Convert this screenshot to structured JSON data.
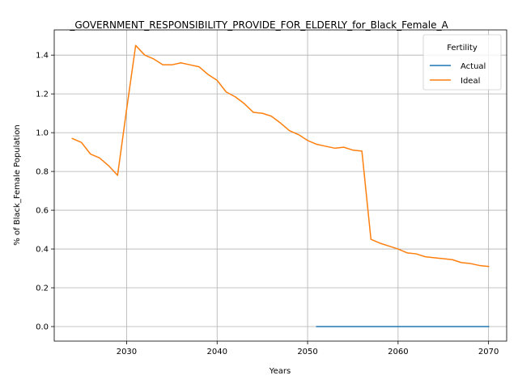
{
  "chart_data": {
    "type": "line",
    "title": "_GOVERNMENT_RESPONSIBILITY_PROVIDE_FOR_ELDERLY_for_Black_Female_A",
    "xlabel": "Years",
    "ylabel": "% of Black_Female Population",
    "xlim": [
      2022,
      2072
    ],
    "ylim": [
      -0.075,
      1.53
    ],
    "xticks": [
      2030,
      2040,
      2050,
      2060,
      2070
    ],
    "yticks": [
      0.0,
      0.2,
      0.4,
      0.6,
      0.8,
      1.0,
      1.2,
      1.4
    ],
    "grid": true,
    "legend": {
      "title": "Fertility",
      "placement": "top-right"
    },
    "series": [
      {
        "name": "Actual",
        "color": "#1f77b4",
        "x": [
          2051,
          2052,
          2053,
          2054,
          2055,
          2056,
          2057,
          2058,
          2059,
          2060,
          2061,
          2062,
          2063,
          2064,
          2065,
          2066,
          2067,
          2068,
          2069,
          2070
        ],
        "y": [
          0,
          0,
          0,
          0,
          0,
          0,
          0,
          0,
          0,
          0,
          0,
          0,
          0,
          0,
          0,
          0,
          0,
          0,
          0,
          0
        ]
      },
      {
        "name": "Ideal",
        "color": "#ff7f0e",
        "x": [
          2024,
          2025,
          2026,
          2027,
          2028,
          2029,
          2030,
          2031,
          2032,
          2033,
          2034,
          2035,
          2036,
          2037,
          2038,
          2039,
          2040,
          2041,
          2042,
          2043,
          2044,
          2045,
          2046,
          2047,
          2048,
          2049,
          2050,
          2051,
          2052,
          2053,
          2054,
          2055,
          2056,
          2057,
          2058,
          2059,
          2060,
          2061,
          2062,
          2063,
          2064,
          2065,
          2066,
          2067,
          2068,
          2069,
          2070
        ],
        "y": [
          0.97,
          0.95,
          0.89,
          0.87,
          0.83,
          0.78,
          1.12,
          1.45,
          1.4,
          1.38,
          1.35,
          1.35,
          1.36,
          1.35,
          1.34,
          1.3,
          1.27,
          1.21,
          1.185,
          1.15,
          1.105,
          1.1,
          1.085,
          1.05,
          1.01,
          0.99,
          0.96,
          0.94,
          0.93,
          0.92,
          0.925,
          0.91,
          0.905,
          0.45,
          0.43,
          0.415,
          0.4,
          0.38,
          0.375,
          0.36,
          0.355,
          0.35,
          0.345,
          0.33,
          0.325,
          0.315,
          0.31
        ]
      }
    ]
  }
}
